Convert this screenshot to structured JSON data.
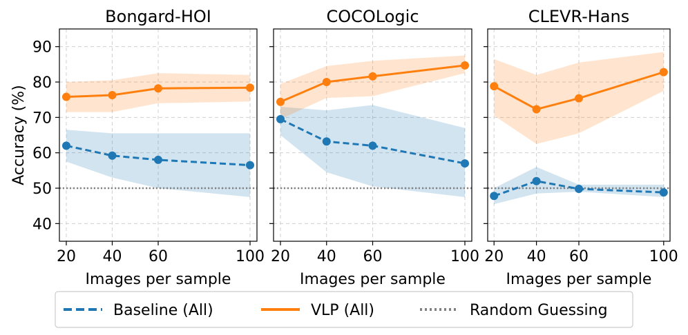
{
  "chart_data": [
    {
      "type": "line",
      "title": "Bongard-HOI",
      "xlabel": "Images per sample",
      "ylabel": "Accuracy (%)",
      "x": [
        20,
        40,
        60,
        100
      ],
      "xlim": [
        17,
        103
      ],
      "ylim": [
        35,
        95
      ],
      "xticks": [
        "20",
        "40",
        "60",
        "100"
      ],
      "yticks": [
        "40",
        "50",
        "60",
        "70",
        "80",
        "90"
      ],
      "grid": true,
      "reference_line": 50,
      "series": [
        {
          "name": "Baseline (All)",
          "values": [
            62.0,
            59.2,
            58.0,
            56.5
          ],
          "band_low": [
            57.5,
            53.0,
            50.0,
            47.5
          ],
          "band_high": [
            66.5,
            65.5,
            65.5,
            65.5
          ]
        },
        {
          "name": "VLP (All)",
          "values": [
            75.8,
            76.3,
            78.2,
            78.4
          ],
          "band_low": [
            71.5,
            71.5,
            74.0,
            74.5
          ],
          "band_high": [
            80.0,
            80.5,
            82.5,
            82.0
          ]
        }
      ]
    },
    {
      "type": "line",
      "title": "COCOLogic",
      "xlabel": "Images per sample",
      "ylabel": "",
      "x": [
        20,
        40,
        60,
        100
      ],
      "xlim": [
        17,
        103
      ],
      "ylim": [
        35,
        95
      ],
      "xticks": [
        "20",
        "40",
        "60",
        "100"
      ],
      "yticks": [
        "40",
        "50",
        "60",
        "70",
        "80",
        "90"
      ],
      "grid": true,
      "reference_line": 50,
      "series": [
        {
          "name": "Baseline (All)",
          "values": [
            69.5,
            63.2,
            62.0,
            57.0
          ],
          "band_low": [
            65.0,
            54.5,
            50.5,
            47.5
          ],
          "band_high": [
            73.0,
            72.0,
            73.5,
            67.0
          ]
        },
        {
          "name": "VLP (All)",
          "values": [
            74.4,
            80.0,
            81.6,
            84.7
          ],
          "band_low": [
            69.5,
            75.5,
            76.0,
            82.5
          ],
          "band_high": [
            79.5,
            84.5,
            86.0,
            87.5
          ]
        }
      ]
    },
    {
      "type": "line",
      "title": "CLEVR-Hans",
      "xlabel": "Images per sample",
      "ylabel": "",
      "x": [
        20,
        40,
        60,
        100
      ],
      "xlim": [
        17,
        103
      ],
      "ylim": [
        35,
        95
      ],
      "xticks": [
        "20",
        "40",
        "60",
        "100"
      ],
      "yticks": [
        "40",
        "50",
        "60",
        "70",
        "80",
        "90"
      ],
      "grid": true,
      "reference_line": 50,
      "series": [
        {
          "name": "Baseline (All)",
          "values": [
            47.8,
            52.0,
            49.8,
            48.8
          ],
          "band_low": [
            45.5,
            48.5,
            49.0,
            47.5
          ],
          "band_high": [
            50.0,
            56.0,
            51.0,
            51.0
          ]
        },
        {
          "name": "VLP (All)",
          "values": [
            78.8,
            72.3,
            75.4,
            82.8
          ],
          "band_low": [
            70.5,
            62.5,
            65.5,
            77.5
          ],
          "band_high": [
            86.5,
            82.0,
            85.5,
            88.5
          ]
        }
      ]
    }
  ],
  "legend": {
    "items": [
      {
        "label": "Baseline (All)",
        "style": "dashed",
        "color": "#1f77b4"
      },
      {
        "label": "VLP (All)",
        "style": "solid",
        "color": "#ff7f0e"
      },
      {
        "label": "Random Guessing",
        "style": "dotted",
        "color": "#808080"
      }
    ]
  },
  "colors": {
    "baseline": "#1f77b4",
    "baseline_band": "#1f77b4",
    "vlp": "#ff7f0e",
    "vlp_band": "#ff7f0e",
    "random": "#808080",
    "grid": "#d0d0d0"
  }
}
